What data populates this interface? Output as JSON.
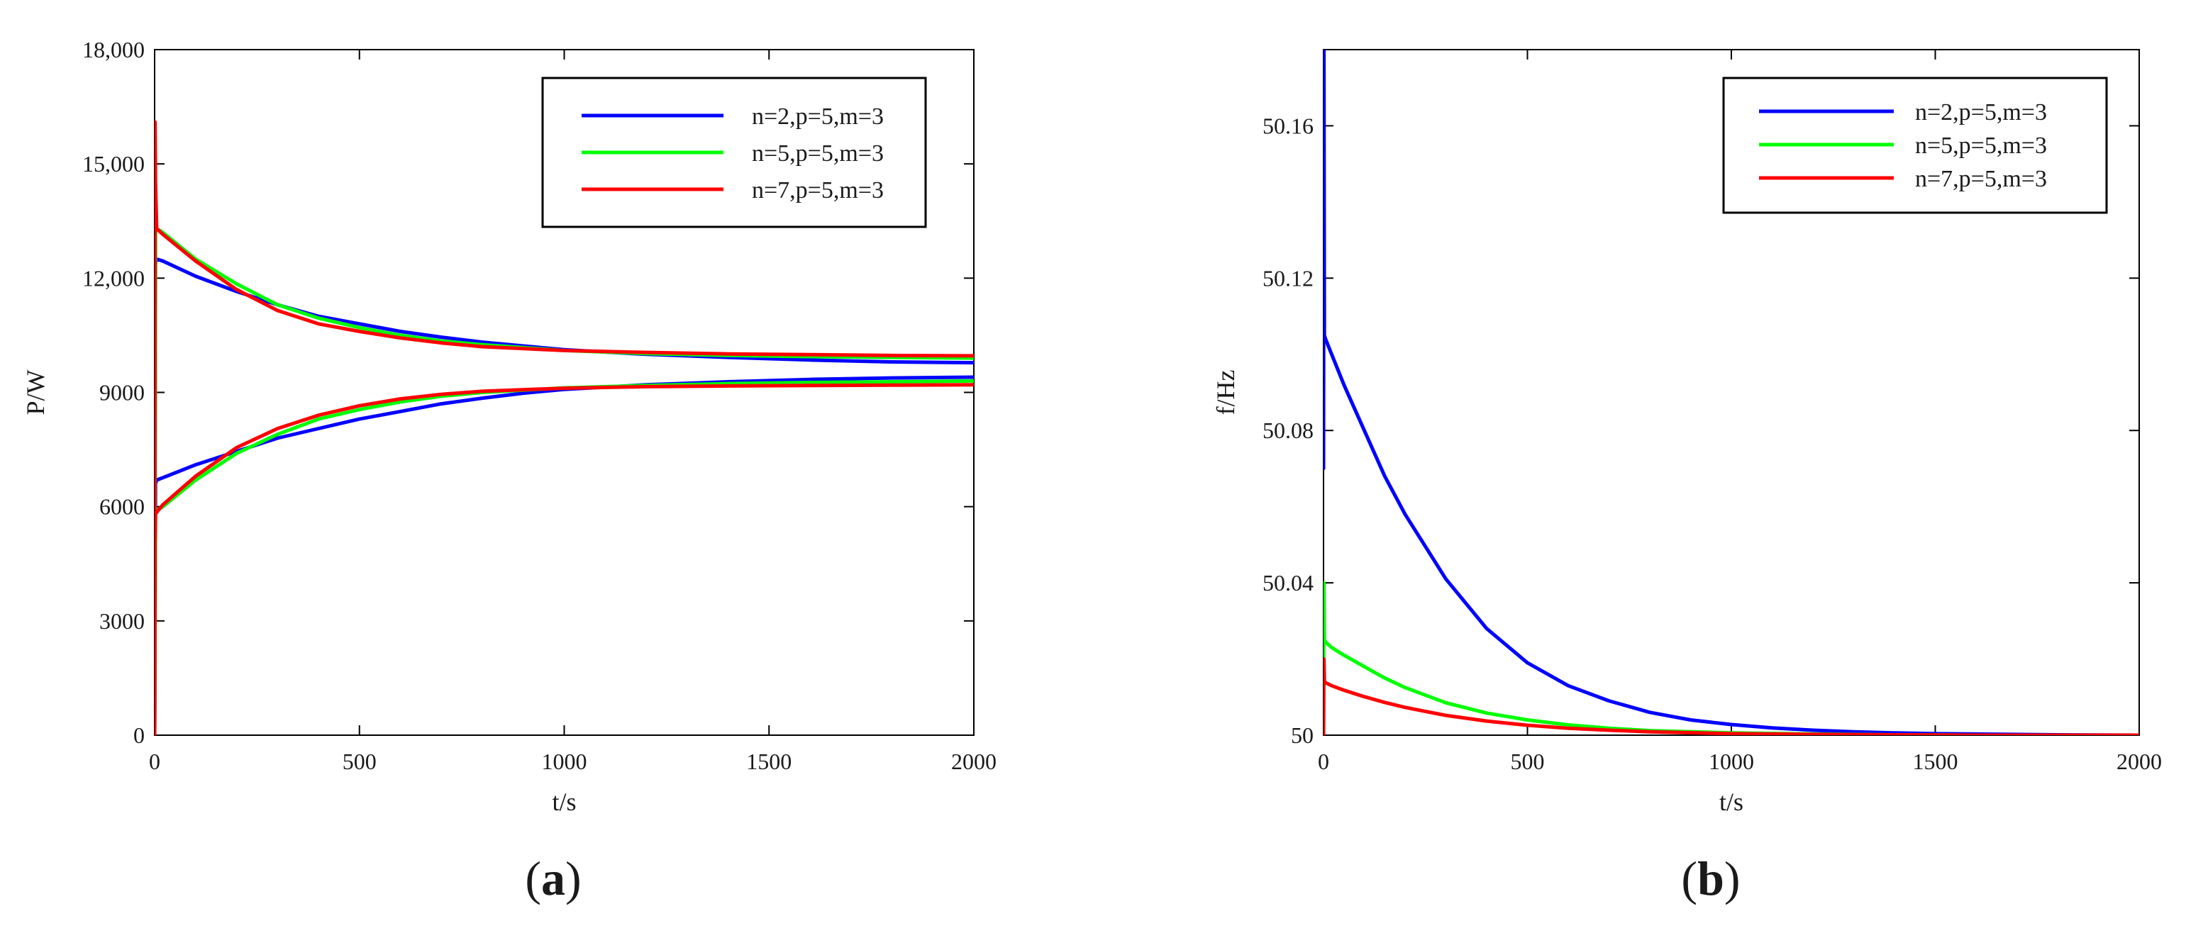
{
  "chart_data": [
    {
      "panel_label": "(a)",
      "panel_label_parts": [
        "(",
        "a",
        ")"
      ],
      "type": "line",
      "title": "",
      "xlabel": "t/s",
      "ylabel": "P/W",
      "xlim": [
        0,
        2000
      ],
      "ylim": [
        0,
        18000
      ],
      "xticks": [
        0,
        500,
        1000,
        1500,
        2000
      ],
      "xtick_labels": [
        "0",
        "500",
        "1000",
        "1500",
        "2000"
      ],
      "yticks": [
        0,
        3000,
        6000,
        9000,
        12000,
        15000,
        18000
      ],
      "ytick_labels": [
        "0",
        "3000",
        "6000",
        "9000",
        "12,000",
        "15,000",
        "18,000"
      ],
      "grid": false,
      "legend_position": "top-right",
      "series": [
        {
          "name": "n=2,p=5,m=3",
          "color": "#0000ff",
          "lines": [
            {
              "x": [
                0,
                2,
                5,
                20,
                100,
                200,
                300,
                400,
                500,
                600,
                700,
                800,
                900,
                1000,
                1200,
                1400,
                1600,
                1800,
                2000
              ],
              "y": [
                0,
                12400,
                12500,
                12450,
                12050,
                11650,
                11300,
                11000,
                10800,
                10600,
                10450,
                10320,
                10220,
                10120,
                10000,
                9920,
                9850,
                9800,
                9780
              ]
            },
            {
              "x": [
                0,
                2,
                5,
                20,
                100,
                200,
                300,
                400,
                500,
                600,
                700,
                800,
                900,
                1000,
                1200,
                1400,
                1600,
                1800,
                2000
              ],
              "y": [
                0,
                6600,
                6700,
                6760,
                7100,
                7450,
                7800,
                8050,
                8300,
                8500,
                8700,
                8850,
                8980,
                9080,
                9200,
                9280,
                9340,
                9380,
                9400
              ]
            }
          ]
        },
        {
          "name": "n=5,p=5,m=3",
          "color": "#00ff00",
          "lines": [
            {
              "x": [
                0,
                2,
                5,
                20,
                100,
                200,
                300,
                400,
                500,
                600,
                700,
                800,
                1000,
                1200,
                1400,
                1600,
                1800,
                2000
              ],
              "y": [
                0,
                13200,
                13300,
                13200,
                12500,
                11850,
                11300,
                10950,
                10700,
                10500,
                10350,
                10250,
                10100,
                10020,
                9970,
                9940,
                9920,
                9900
              ]
            },
            {
              "x": [
                0,
                2,
                5,
                20,
                100,
                200,
                300,
                400,
                500,
                600,
                700,
                800,
                1000,
                1200,
                1400,
                1600,
                1800,
                2000
              ],
              "y": [
                0,
                5900,
                5900,
                6000,
                6700,
                7400,
                7900,
                8300,
                8550,
                8750,
                8900,
                9000,
                9120,
                9180,
                9230,
                9260,
                9280,
                9300
              ]
            }
          ]
        },
        {
          "name": "n=7,p=5,m=3",
          "color": "#ff0000",
          "lines": [
            {
              "x": [
                0,
                1,
                2,
                5,
                20,
                100,
                200,
                300,
                400,
                500,
                600,
                700,
                800,
                1000,
                1200,
                1400,
                1600,
                1800,
                2000
              ],
              "y": [
                0,
                16100,
                14500,
                13300,
                13150,
                12450,
                11700,
                11150,
                10800,
                10600,
                10430,
                10300,
                10200,
                10100,
                10050,
                10010,
                9990,
                9970,
                9960
              ]
            },
            {
              "x": [
                0,
                1,
                2,
                5,
                20,
                100,
                200,
                300,
                400,
                500,
                600,
                700,
                800,
                1000,
                1200,
                1400,
                1600,
                1800,
                2000
              ],
              "y": [
                0,
                5000,
                5800,
                5850,
                6050,
                6800,
                7550,
                8050,
                8400,
                8650,
                8830,
                8950,
                9030,
                9110,
                9150,
                9170,
                9180,
                9190,
                9200
              ]
            }
          ]
        }
      ]
    },
    {
      "panel_label": "(b)",
      "panel_label_parts": [
        "(",
        "b",
        ")"
      ],
      "type": "line",
      "title": "",
      "xlabel": "t/s",
      "ylabel": "f/Hz",
      "xlim": [
        0,
        2000
      ],
      "ylim": [
        50,
        50.18
      ],
      "xticks": [
        0,
        500,
        1000,
        1500,
        2000
      ],
      "xtick_labels": [
        "0",
        "500",
        "1000",
        "1500",
        "2000"
      ],
      "yticks": [
        50,
        50.04,
        50.08,
        50.12,
        50.16
      ],
      "ytick_labels": [
        "50",
        "50.04",
        "50.08",
        "50.12",
        "50.16"
      ],
      "grid": false,
      "legend_position": "top-right",
      "series": [
        {
          "name": "n=2,p=5,m=3",
          "color": "#0000ff",
          "lines": [
            {
              "x": [
                0,
                1,
                2,
                5,
                20,
                50,
                100,
                150,
                200,
                300,
                400,
                500,
                600,
                700,
                800,
                900,
                1000,
                1100,
                1200,
                1300,
                1400,
                1500,
                1600,
                1800,
                2000
              ],
              "y": [
                50.07,
                50.18,
                50.105,
                50.104,
                50.1,
                50.092,
                50.08,
                50.068,
                50.058,
                50.041,
                50.028,
                50.019,
                50.013,
                50.009,
                50.006,
                50.004,
                50.0028,
                50.0019,
                50.0013,
                50.0009,
                50.0006,
                50.0004,
                50.0003,
                50.0001,
                50.0
              ]
            }
          ]
        },
        {
          "name": "n=5,p=5,m=3",
          "color": "#00ff00",
          "lines": [
            {
              "x": [
                0,
                1,
                2,
                5,
                20,
                50,
                100,
                150,
                200,
                300,
                400,
                500,
                600,
                700,
                800,
                1000,
                1200,
                1400,
                1600,
                1800,
                2000
              ],
              "y": [
                50.0,
                50.04,
                50.025,
                50.0245,
                50.023,
                50.021,
                50.018,
                50.015,
                50.0125,
                50.0085,
                50.0058,
                50.004,
                50.0027,
                50.0018,
                50.0012,
                50.0006,
                50.0003,
                50.0001,
                50.0,
                50.0,
                50.0
              ]
            }
          ]
        },
        {
          "name": "n=7,p=5,m=3",
          "color": "#ff0000",
          "lines": [
            {
              "x": [
                0,
                1,
                2,
                5,
                20,
                50,
                100,
                150,
                200,
                300,
                400,
                500,
                600,
                700,
                800,
                1000,
                1200,
                1400,
                1600,
                1800,
                2000
              ],
              "y": [
                50.0,
                50.02,
                50.014,
                50.0138,
                50.013,
                50.0118,
                50.0101,
                50.0086,
                50.0073,
                50.0052,
                50.0037,
                50.0026,
                50.0018,
                50.0013,
                50.0009,
                50.0004,
                50.0002,
                50.0001,
                50.0,
                50.0,
                50.0
              ]
            }
          ]
        }
      ]
    }
  ]
}
